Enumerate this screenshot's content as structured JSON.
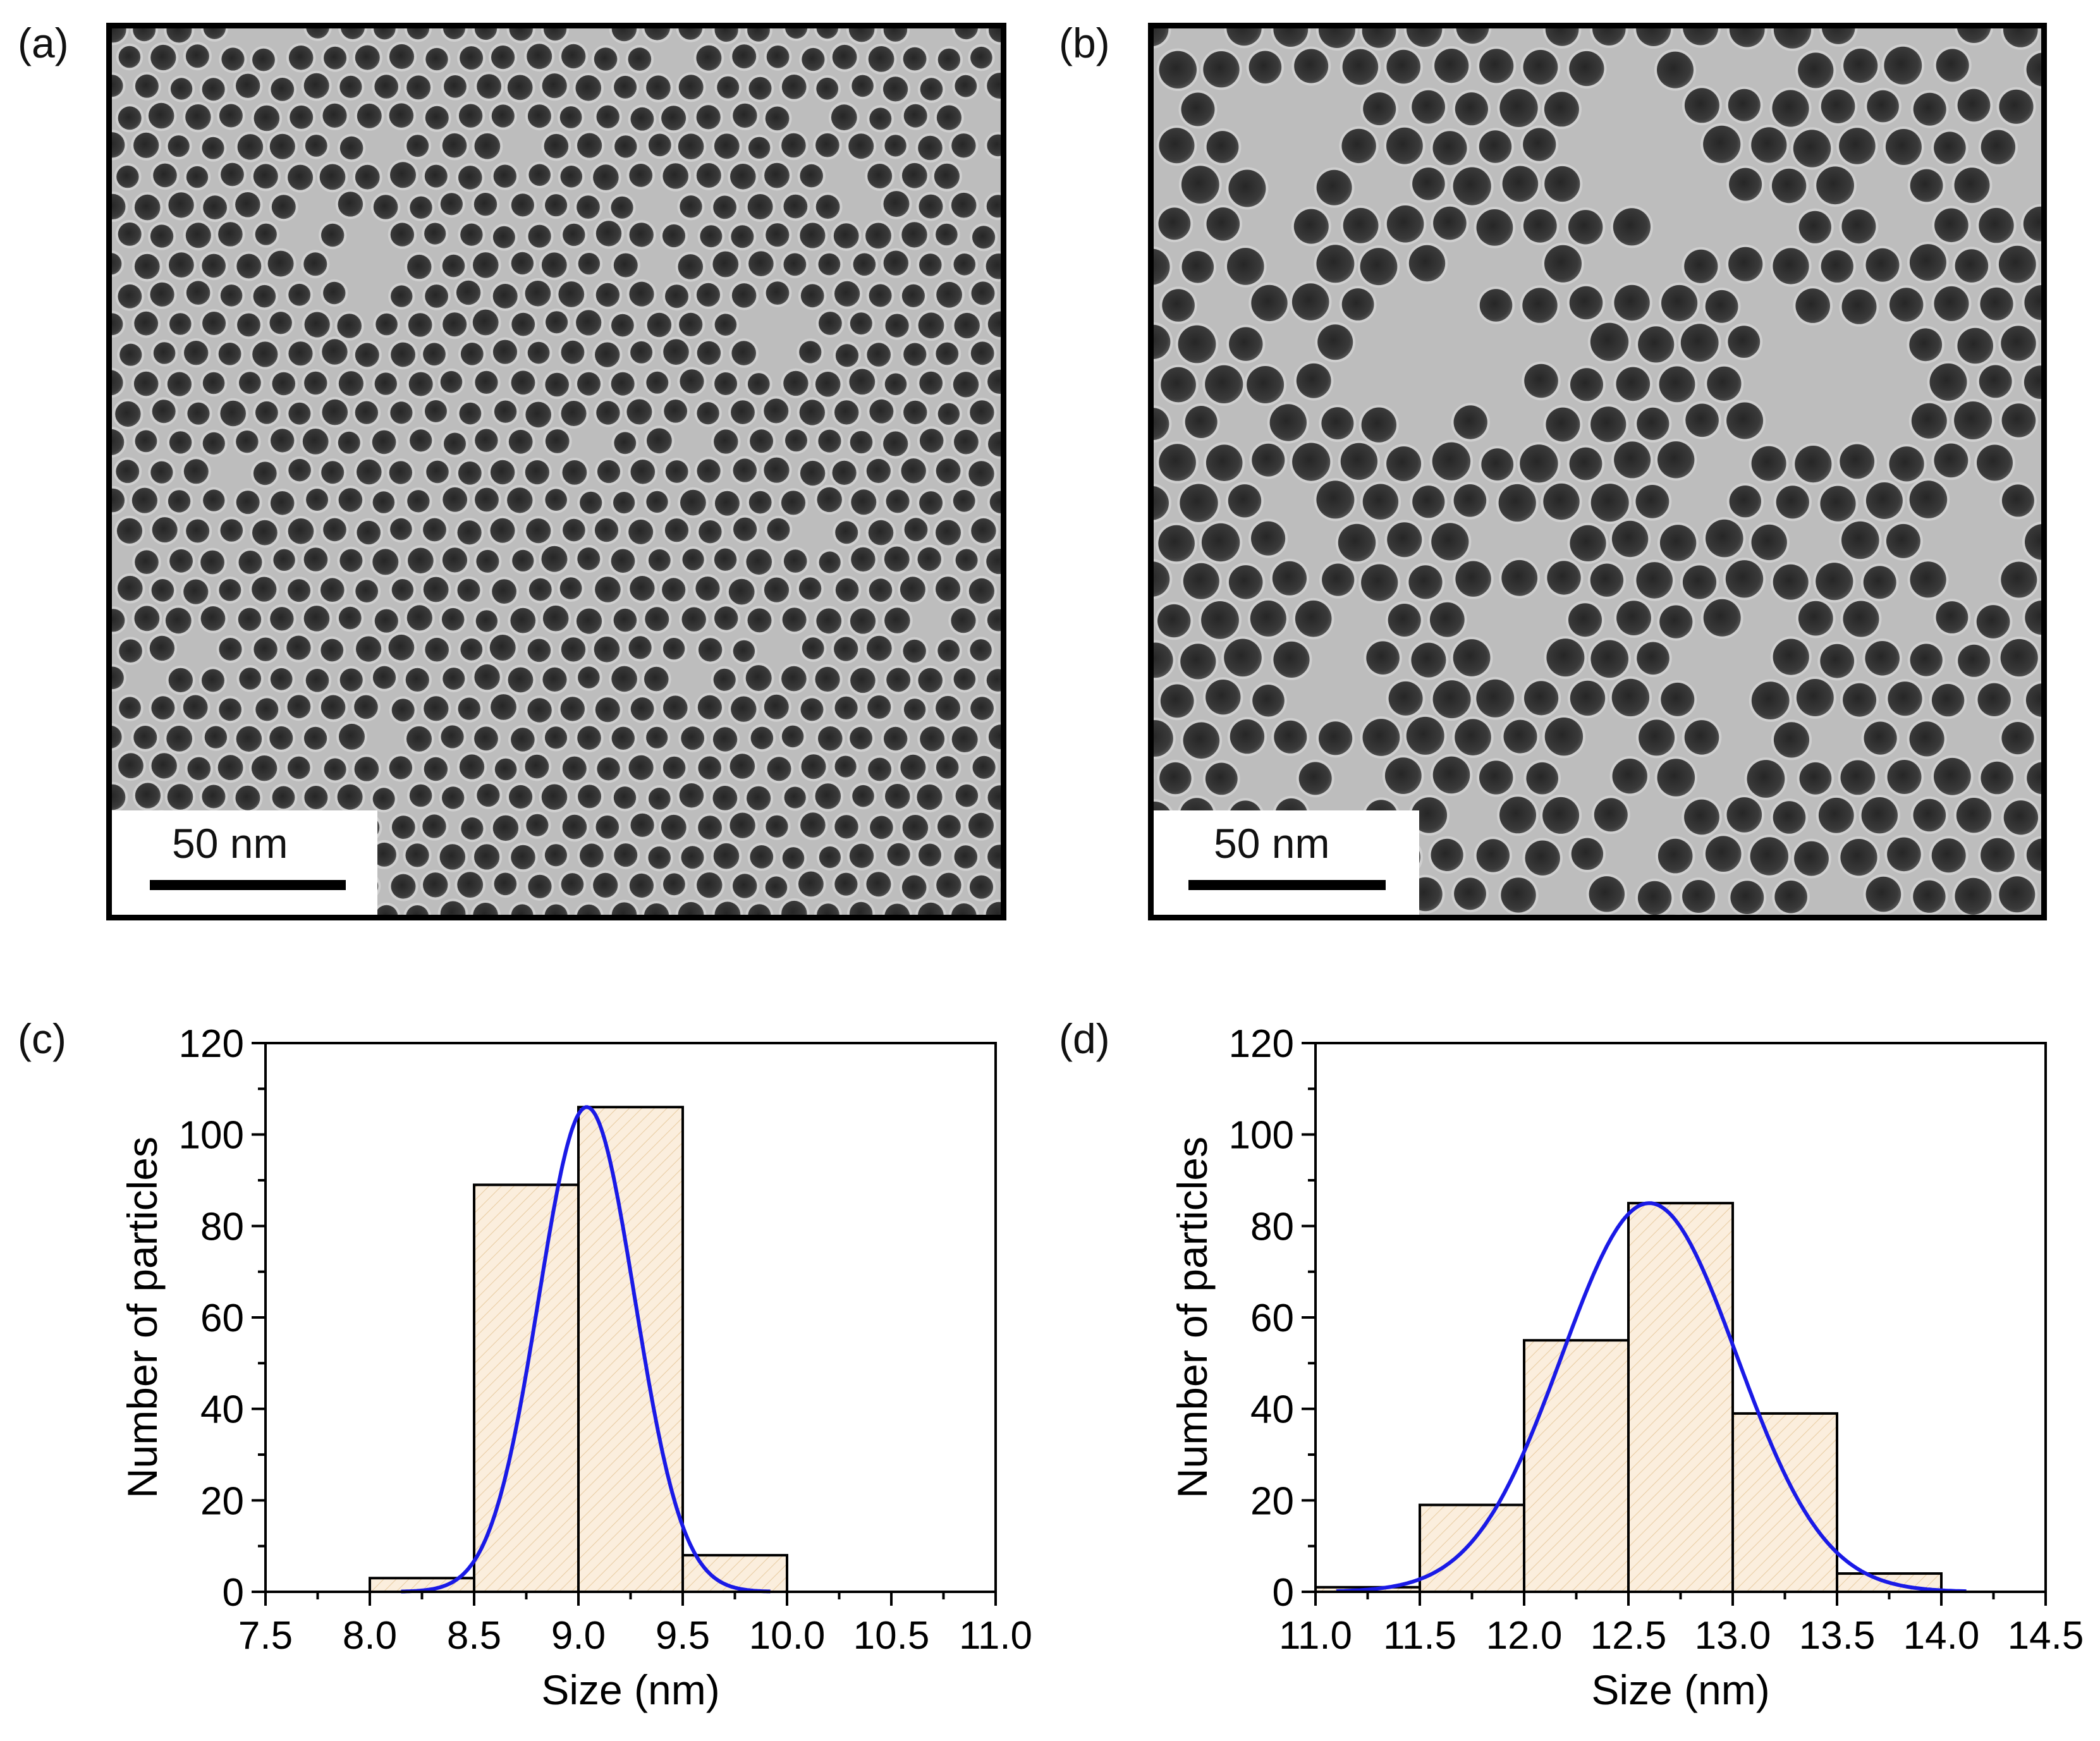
{
  "panels": {
    "a": {
      "letter": "(a)",
      "scale_label": "50 nm",
      "packing": "dense"
    },
    "b": {
      "letter": "(b)",
      "scale_label": "50 nm",
      "packing": "sparse"
    },
    "c": {
      "letter": "(c)"
    },
    "d": {
      "letter": "(d)"
    }
  },
  "colors": {
    "bar_fill": "#fbeedd",
    "bar_hatch": "#e8cba0",
    "fit_line": "#1a1ae6",
    "axis": "#000000",
    "tem_background": "#bdbdbd",
    "particle": "#3a3a3a"
  },
  "chart_data": [
    {
      "panel": "c",
      "type": "bar",
      "xlabel": "Size (nm)",
      "ylabel": "Number of particles",
      "xlim": [
        7.5,
        11.0
      ],
      "ylim": [
        0,
        120
      ],
      "xticks": [
        "7.5",
        "8.0",
        "8.5",
        "9.0",
        "9.5",
        "10.0",
        "10.5",
        "11.0"
      ],
      "yticks": [
        "0",
        "20",
        "40",
        "60",
        "80",
        "100",
        "120"
      ],
      "bins": [
        {
          "from": 8.0,
          "to": 8.5,
          "count": 3
        },
        {
          "from": 8.5,
          "to": 9.0,
          "count": 89
        },
        {
          "from": 9.0,
          "to": 9.5,
          "count": 106
        },
        {
          "from": 9.5,
          "to": 10.0,
          "count": 8
        }
      ],
      "fit": {
        "kind": "gaussian",
        "center": 9.04,
        "amplitude": 106,
        "sigma": 0.23,
        "x_range": [
          8.15,
          9.92
        ]
      }
    },
    {
      "panel": "d",
      "type": "bar",
      "xlabel": "Size (nm)",
      "ylabel": "Number of particles",
      "xlim": [
        11.0,
        14.5
      ],
      "ylim": [
        0,
        120
      ],
      "xticks": [
        "11.0",
        "11.5",
        "12.0",
        "12.5",
        "13.0",
        "13.5",
        "14.0",
        "14.5"
      ],
      "yticks": [
        "0",
        "20",
        "40",
        "60",
        "80",
        "100",
        "120"
      ],
      "bins": [
        {
          "from": 11.0,
          "to": 11.5,
          "count": 1
        },
        {
          "from": 11.5,
          "to": 12.0,
          "count": 19
        },
        {
          "from": 12.0,
          "to": 12.5,
          "count": 55
        },
        {
          "from": 12.5,
          "to": 13.0,
          "count": 85
        },
        {
          "from": 13.0,
          "to": 13.5,
          "count": 39
        },
        {
          "from": 13.5,
          "to": 14.0,
          "count": 4
        }
      ],
      "fit": {
        "kind": "gaussian",
        "center": 12.6,
        "amplitude": 85,
        "sigma": 0.42,
        "x_range": [
          11.1,
          14.12
        ]
      }
    }
  ]
}
